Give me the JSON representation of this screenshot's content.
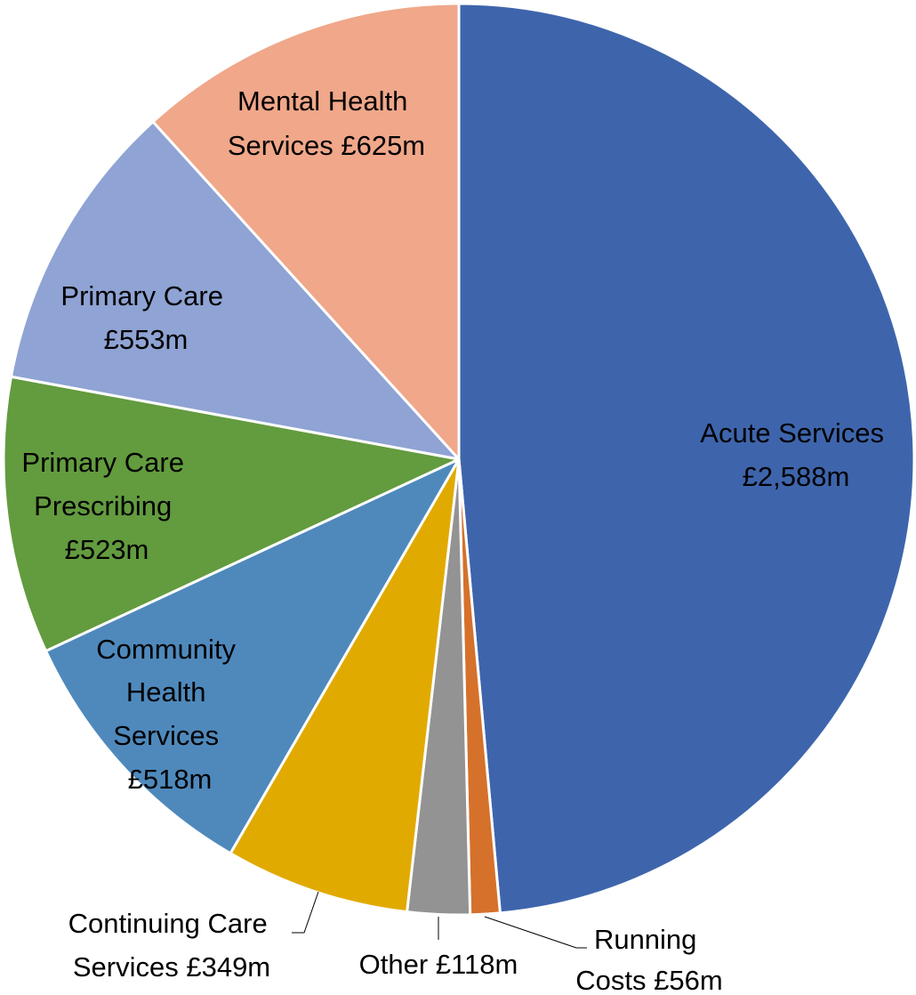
{
  "chart_data": {
    "type": "pie",
    "title": "",
    "slices": [
      {
        "label": "Acute Services",
        "value_label": "£2,588m",
        "value": 2588,
        "color": "#3E65AC"
      },
      {
        "label": "Running Costs",
        "value_label": "£56m",
        "value": 56,
        "color": "#D5712B"
      },
      {
        "label": "Other",
        "value_label": "£118m",
        "value": 118,
        "color": "#939393"
      },
      {
        "label": "Continuing Care Services",
        "value_label": "£349m",
        "value": 349,
        "color": "#E1AA00"
      },
      {
        "label": "Community Health Services",
        "value_label": "£518m",
        "value": 518,
        "color": "#4F89BC"
      },
      {
        "label": "Primary Care Prescribing",
        "value_label": "£523m",
        "value": 523,
        "color": "#639B3F"
      },
      {
        "label": "Primary Care",
        "value_label": "£553m",
        "value": 553,
        "color": "#8FA3D4"
      },
      {
        "label": "Mental Health Services",
        "value_label": "£625m",
        "value": 625,
        "color": "#F0A78A"
      }
    ],
    "data_labels": [
      {
        "lines": [
          "Acute Services",
          "£2,588m"
        ]
      },
      {
        "lines": [
          "Running",
          "Costs £56m"
        ]
      },
      {
        "lines": [
          "Other £118m"
        ]
      },
      {
        "lines": [
          "Continuing Care",
          "Services £349m"
        ]
      },
      {
        "lines": [
          "Community",
          "Health",
          "Services",
          "£518m"
        ]
      },
      {
        "lines": [
          "Primary Care",
          "Prescribing",
          "£523m"
        ]
      },
      {
        "lines": [
          "Primary Care",
          "£553m"
        ]
      },
      {
        "lines": [
          "Mental Health",
          "Services £625m"
        ]
      }
    ],
    "start_angle_deg": 0,
    "direction": "clockwise",
    "legend": "none"
  }
}
